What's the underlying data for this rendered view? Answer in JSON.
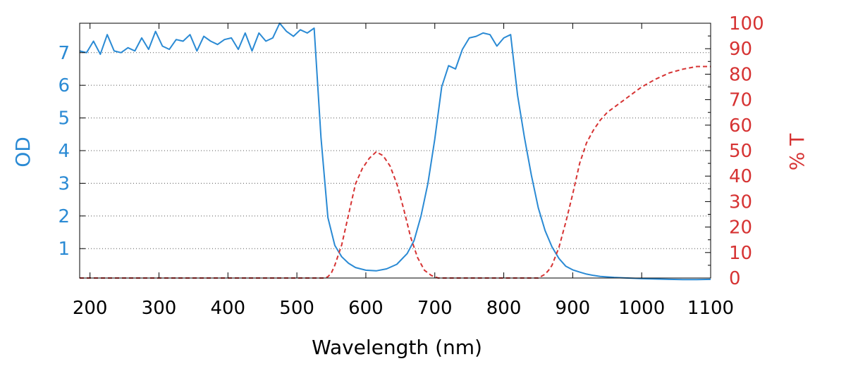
{
  "colors": {
    "od": "#2a8ad4",
    "transmission": "#d63333",
    "axis": "#000000",
    "grid": "#555555"
  },
  "chart_data": {
    "type": "line",
    "xlabel": "Wavelength (nm)",
    "ylabel_left": "OD",
    "ylabel_right": "% T",
    "xlim": [
      185,
      1100
    ],
    "ylim_left": [
      0.1,
      7.9
    ],
    "ylim_right": [
      0,
      100
    ],
    "x_ticks": [
      200,
      300,
      400,
      500,
      600,
      700,
      800,
      900,
      1000,
      1100
    ],
    "y_left_ticks": [
      1,
      2,
      3,
      4,
      5,
      6,
      7
    ],
    "y_right_ticks": [
      0,
      10,
      20,
      30,
      40,
      50,
      60,
      70,
      80,
      90,
      100
    ],
    "grid": "horizontal dotted at left-axis ticks",
    "series": [
      {
        "axis": "left",
        "style": "solid",
        "x": [
          185,
          195,
          205,
          215,
          225,
          235,
          245,
          255,
          265,
          275,
          285,
          295,
          305,
          315,
          325,
          335,
          345,
          355,
          365,
          375,
          385,
          395,
          405,
          415,
          425,
          435,
          445,
          455,
          465,
          475,
          485,
          495,
          505,
          515,
          525,
          535,
          545,
          555,
          565,
          575,
          585,
          600,
          615,
          630,
          645,
          660,
          670,
          680,
          690,
          700,
          710,
          720,
          730,
          740,
          750,
          760,
          770,
          780,
          790,
          800,
          810,
          820,
          830,
          840,
          850,
          860,
          870,
          880,
          890,
          900,
          910,
          920,
          930,
          940,
          960,
          980,
          1000,
          1020,
          1040,
          1060,
          1080,
          1100
        ],
        "values": [
          7.05,
          7.0,
          7.35,
          6.95,
          7.55,
          7.05,
          7.0,
          7.15,
          7.05,
          7.45,
          7.1,
          7.65,
          7.2,
          7.1,
          7.4,
          7.35,
          7.55,
          7.05,
          7.5,
          7.35,
          7.25,
          7.4,
          7.45,
          7.1,
          7.6,
          7.05,
          7.6,
          7.35,
          7.45,
          7.9,
          7.65,
          7.5,
          7.7,
          7.6,
          7.75,
          4.4,
          1.95,
          1.1,
          0.75,
          0.55,
          0.42,
          0.34,
          0.32,
          0.38,
          0.52,
          0.85,
          1.25,
          2.0,
          3.0,
          4.35,
          5.95,
          6.6,
          6.5,
          7.1,
          7.45,
          7.5,
          7.6,
          7.55,
          7.2,
          7.45,
          7.55,
          5.7,
          4.4,
          3.25,
          2.25,
          1.55,
          1.05,
          0.7,
          0.46,
          0.35,
          0.28,
          0.22,
          0.18,
          0.15,
          0.12,
          0.1,
          0.08,
          0.07,
          0.06,
          0.05,
          0.05,
          0.06
        ]
      },
      {
        "axis": "right",
        "style": "dashed",
        "x": [
          185,
          540,
          545,
          550,
          555,
          565,
          575,
          585,
          595,
          605,
          615,
          625,
          635,
          645,
          655,
          665,
          675,
          685,
          695,
          705,
          850,
          860,
          865,
          870,
          880,
          890,
          900,
          910,
          920,
          930,
          940,
          950,
          960,
          980,
          1000,
          1020,
          1040,
          1060,
          1080,
          1100
        ],
        "values": [
          0,
          0,
          0.5,
          2,
          5,
          13,
          25,
          37,
          43,
          47,
          49.5,
          48,
          44,
          37,
          27,
          16,
          8,
          3,
          1,
          0,
          0,
          1.5,
          3,
          5,
          12,
          22,
          33,
          45,
          53,
          58,
          62,
          65,
          67,
          71,
          75,
          78,
          80.5,
          82,
          83,
          83
        ]
      }
    ]
  }
}
